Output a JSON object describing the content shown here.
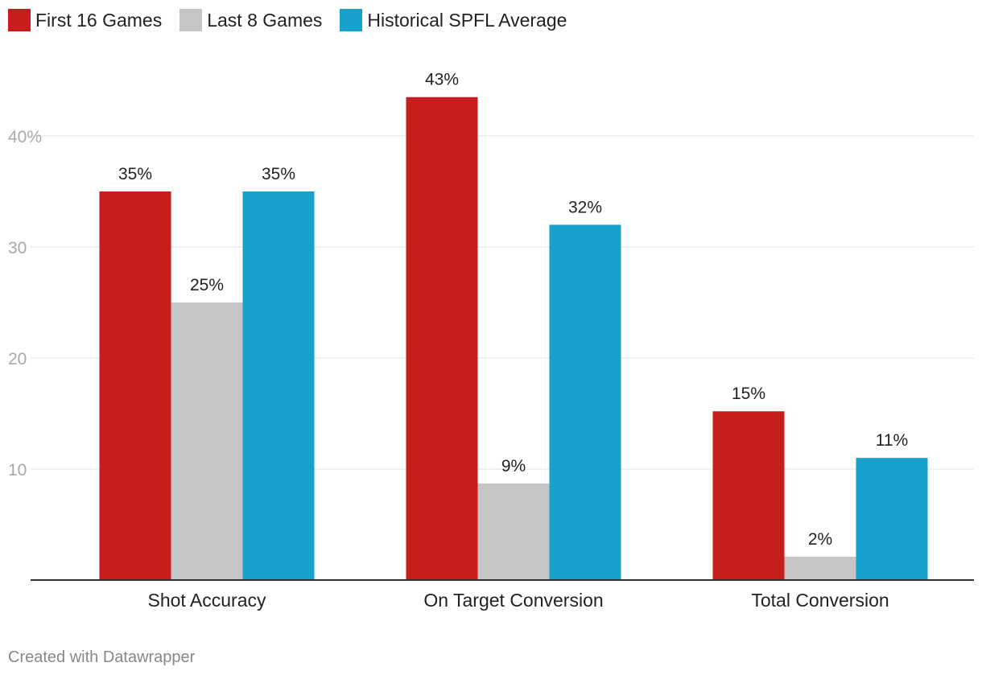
{
  "chart_data": {
    "type": "bar",
    "categories": [
      "Shot Accuracy",
      "On Target Conversion",
      "Total Conversion"
    ],
    "series": [
      {
        "name": "First 16 Games",
        "color": "#c71e1d",
        "values": [
          35,
          43.5,
          15.2
        ],
        "labels": [
          "35%",
          "43%",
          "15%"
        ]
      },
      {
        "name": "Last 8 Games",
        "color": "#c5c5c5",
        "values": [
          25,
          8.7,
          2.1
        ],
        "labels": [
          "25%",
          "9%",
          "2%"
        ]
      },
      {
        "name": "Historical SPFL Average",
        "color": "#18a1cd",
        "values": [
          35,
          32,
          11
        ],
        "labels": [
          "35%",
          "32%",
          "11%"
        ]
      }
    ],
    "yticks": [
      {
        "value": 10,
        "label": "10"
      },
      {
        "value": 20,
        "label": "20"
      },
      {
        "value": 30,
        "label": "30"
      },
      {
        "value": 40,
        "label": "40%"
      }
    ],
    "ylim": [
      0,
      47
    ],
    "legend_position": "top-left",
    "grid": true
  },
  "footer": {
    "credit": "Created with Datawrapper"
  }
}
